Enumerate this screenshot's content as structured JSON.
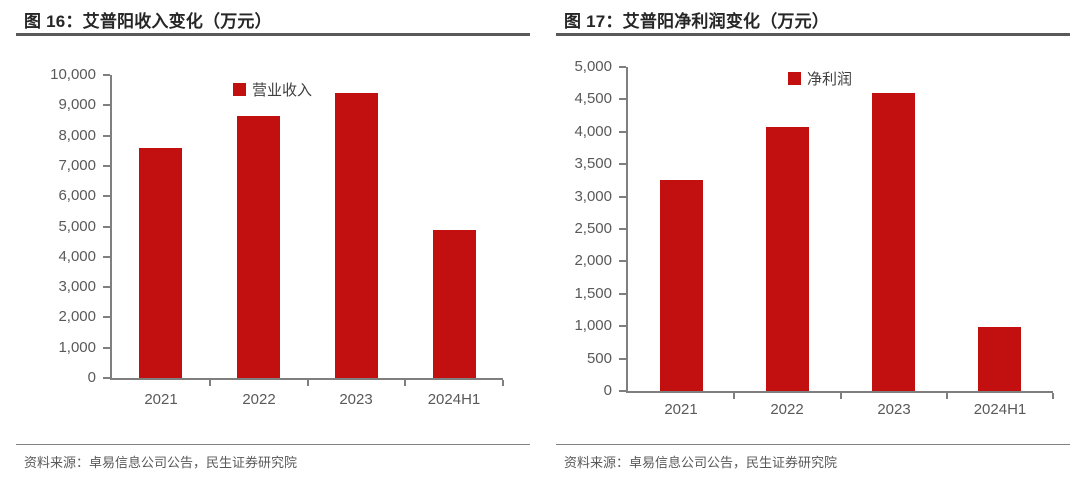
{
  "colors": {
    "bar_red": "#C20F0F",
    "axis_gray": "#7f7f7f",
    "label_gray": "#595959",
    "title_dark": "#262626"
  },
  "charts": [
    {
      "title": "图 16：艾普阳收入变化（万元）",
      "legend": "营业收入",
      "source": "资料来源：卓易信息公司公告，民生证券研究院",
      "chart_data": {
        "type": "bar",
        "title": "艾普阳收入变化（万元）",
        "categories": [
          "2021",
          "2022",
          "2023",
          "2024H1"
        ],
        "values": [
          7600,
          8650,
          9400,
          4870
        ],
        "xlabel": "",
        "ylabel": "",
        "ylim": [
          0,
          10000
        ],
        "ytick_step": 1000,
        "grid": false,
        "legend_position": "top-center",
        "bar_color": "#C20F0F"
      }
    },
    {
      "title": "图 17：艾普阳净利润变化（万元）",
      "legend": "净利润",
      "source": "资料来源：卓易信息公司公告，民生证券研究院",
      "chart_data": {
        "type": "bar",
        "title": "艾普阳净利润变化（万元）",
        "categories": [
          "2021",
          "2022",
          "2023",
          "2024H1"
        ],
        "values": [
          3250,
          4080,
          4600,
          985
        ],
        "xlabel": "",
        "ylabel": "",
        "ylim": [
          0,
          5000
        ],
        "ytick_step": 500,
        "grid": false,
        "legend_position": "top-center",
        "bar_color": "#C20F0F"
      }
    }
  ]
}
